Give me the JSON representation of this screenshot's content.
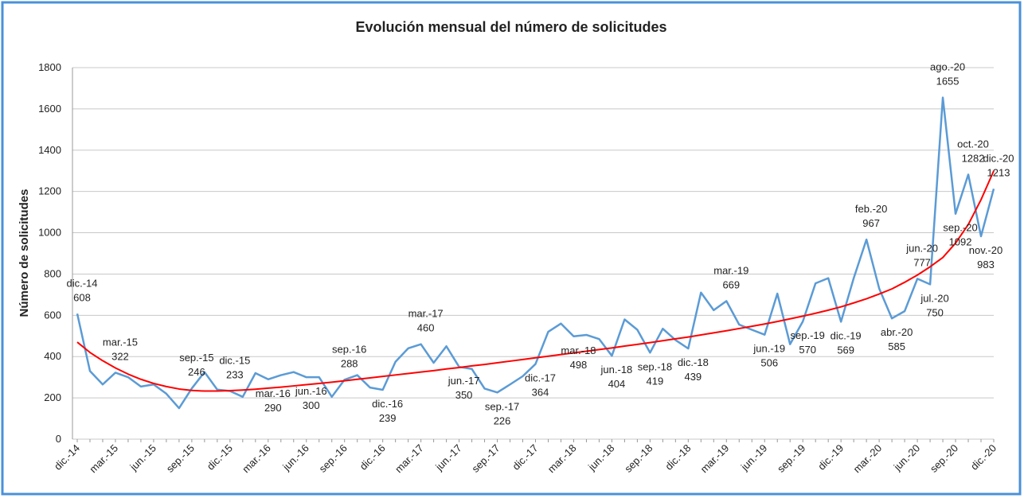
{
  "chart_data": {
    "type": "line",
    "title": "Evolución mensual del número de solicitudes",
    "y_label": "Número de solicitudes",
    "categories": [
      "dic.-14",
      null,
      null,
      "mar.-15",
      null,
      null,
      "jun.-15",
      null,
      null,
      "sep.-15",
      null,
      null,
      "dic.-15",
      null,
      null,
      "mar.-16",
      null,
      null,
      "jun.-16",
      null,
      null,
      "sep.-16",
      null,
      null,
      "dic.-16",
      null,
      null,
      "mar.-17",
      null,
      null,
      "jun.-17",
      null,
      null,
      "sep.-17",
      null,
      null,
      "dic.-17",
      null,
      null,
      "mar.-18",
      null,
      null,
      "jun.-18",
      null,
      null,
      "sep.-18",
      null,
      null,
      "dic.-18",
      null,
      null,
      "mar.-19",
      null,
      null,
      "jun.-19",
      null,
      null,
      "sep.-19",
      null,
      null,
      "dic.-19",
      null,
      null,
      "mar.-20",
      null,
      null,
      "jun.-20",
      null,
      null,
      "sep.-20",
      null,
      null,
      "dic.-20"
    ],
    "series": [
      {
        "color": "#5b9bd5",
        "values": [
          608,
          330,
          265,
          322,
          300,
          255,
          265,
          220,
          150,
          246,
          325,
          240,
          233,
          205,
          320,
          290,
          310,
          325,
          300,
          300,
          205,
          288,
          310,
          250,
          239,
          375,
          440,
          460,
          370,
          450,
          350,
          340,
          245,
          226,
          265,
          305,
          364,
          520,
          560,
          498,
          505,
          485,
          404,
          580,
          530,
          419,
          535,
          480,
          439,
          710,
          625,
          669,
          555,
          530,
          506,
          705,
          460,
          570,
          755,
          780,
          569,
          780,
          967,
          730,
          585,
          620,
          777,
          750,
          1655,
          1092,
          1282,
          983,
          1213
        ],
        "point_labels": [
          "dic.-14",
          null,
          null,
          "mar.-15",
          null,
          null,
          null,
          null,
          null,
          "sep.-15",
          null,
          null,
          "dic.-15",
          null,
          null,
          "mar.-16",
          null,
          null,
          "jun.-16",
          null,
          null,
          "sep.-16",
          null,
          null,
          "dic.-16",
          null,
          null,
          "mar.-17",
          null,
          null,
          "jun.-17",
          null,
          null,
          "sep.-17",
          null,
          null,
          "dic.-17",
          null,
          null,
          "mar.-18",
          null,
          null,
          "jun.-18",
          null,
          null,
          "sep.-18",
          null,
          null,
          "dic.-18",
          null,
          null,
          "mar.-19",
          null,
          null,
          "jun.-19",
          null,
          null,
          "sep.-19",
          null,
          null,
          "dic.-19",
          null,
          "feb.-20",
          null,
          "abr.-20",
          null,
          "jun.-20",
          "jul.-20",
          "ago.-20",
          "sep.-20",
          "oct.-20",
          "nov.-20",
          "dic.-20"
        ]
      }
    ],
    "trend": {
      "color": "#ff0000",
      "values": [
        470,
        420,
        380,
        345,
        315,
        290,
        270,
        255,
        243,
        236,
        233,
        233,
        235,
        238,
        242,
        247,
        252,
        258,
        264,
        270,
        276,
        283,
        290,
        297,
        304,
        311,
        318,
        325,
        332,
        340,
        347,
        355,
        362,
        370,
        378,
        386,
        394,
        402,
        410,
        418,
        426,
        434,
        442,
        451,
        459,
        468,
        477,
        486,
        495,
        505,
        515,
        525,
        536,
        547,
        558,
        570,
        583,
        596,
        610,
        625,
        641,
        660,
        680,
        703,
        728,
        760,
        795,
        835,
        880,
        950,
        1040,
        1160,
        1300
      ]
    },
    "ylim": [
      0,
      1800
    ],
    "yticks": [
      0,
      200,
      400,
      600,
      800,
      1000,
      1200,
      1400,
      1600,
      1800
    ],
    "grid": true
  }
}
